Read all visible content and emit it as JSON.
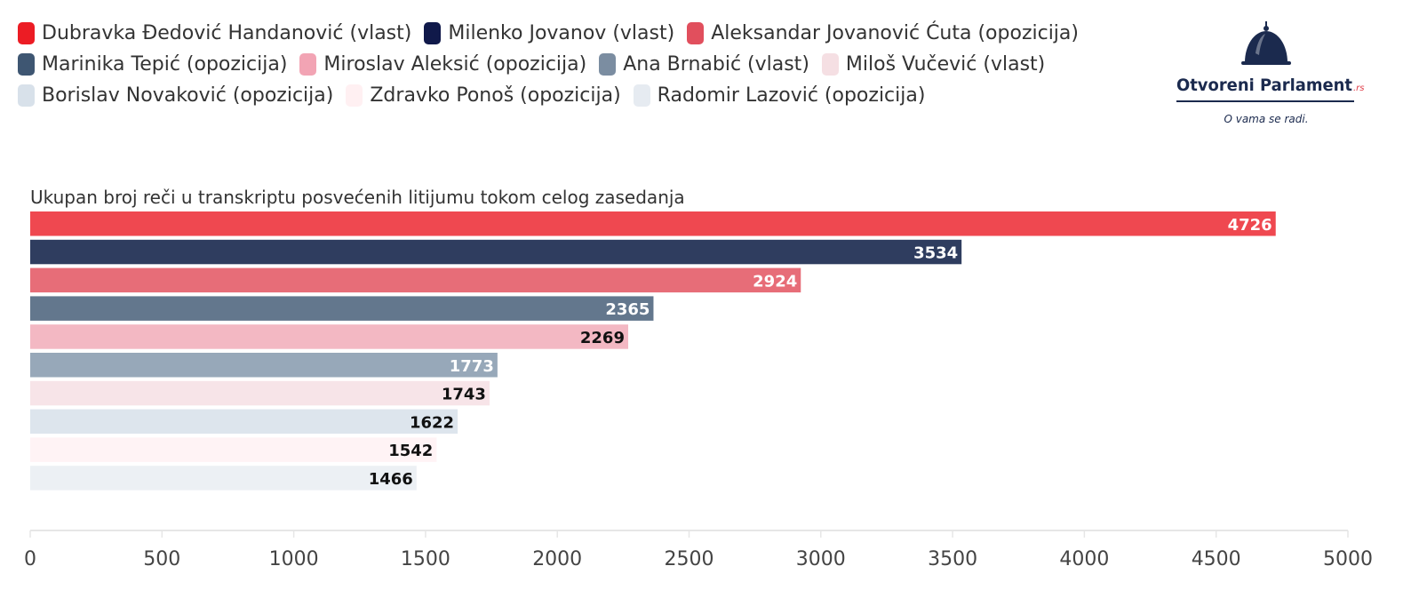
{
  "logo": {
    "name_part1": "Otvoreni",
    "name_part2": "Parlament",
    "domain_suffix": ".rs",
    "tagline": "O vama se radi.",
    "color": "#1b2a4e"
  },
  "chart_data": {
    "type": "bar",
    "orientation": "horizontal",
    "title": "Ukupan broj reči u transkriptu posvećenih litijumu tokom celog zasedanja",
    "xlabel": "",
    "ylabel": "",
    "xlim": [
      0,
      5000
    ],
    "xticks": [
      0,
      500,
      1000,
      1500,
      2000,
      2500,
      3000,
      3500,
      4000,
      4500,
      5000
    ],
    "legend_position": "top",
    "grid": false,
    "data_labels": true,
    "series": [
      {
        "name": "Dubravka Đedović Handanović (vlast)",
        "value": 4726,
        "color": "#ef4850",
        "legend_color": "#ec1c24",
        "label_style": "light"
      },
      {
        "name": "Milenko Jovanov (vlast)",
        "value": 3534,
        "color": "#2f3d5f",
        "legend_color": "#10194a",
        "label_style": "light"
      },
      {
        "name": "Aleksandar Jovanović Ćuta (opozicija)",
        "value": 2924,
        "color": "#e76d78",
        "legend_color": "#e14f5d",
        "label_style": "light"
      },
      {
        "name": "Marinika Tepić (opozicija)",
        "value": 2365,
        "color": "#63778d",
        "legend_color": "#3e5672",
        "label_style": "light"
      },
      {
        "name": "Miroslav Aleksić (opozicija)",
        "value": 2269,
        "color": "#f3b8c3",
        "legend_color": "#f2a4b4",
        "label_style": "dark"
      },
      {
        "name": "Ana Brnabić (vlast)",
        "value": 1773,
        "color": "#97a8b9",
        "legend_color": "#7b8da1",
        "label_style": "light"
      },
      {
        "name": "Miloš Vučević (vlast)",
        "value": 1743,
        "color": "#f7e4e8",
        "legend_color": "#f5dfe3",
        "label_style": "dark"
      },
      {
        "name": "Borislav Novaković (opozicija)",
        "value": 1622,
        "color": "#dde5ed",
        "legend_color": "#d8e1ea",
        "label_style": "dark"
      },
      {
        "name": "Zdravko Ponoš (opozicija)",
        "value": 1542,
        "color": "#fff3f5",
        "legend_color": "#fff0f2",
        "label_style": "dark"
      },
      {
        "name": "Radomir Lazović (opozicija)",
        "value": 1466,
        "color": "#ecf0f4",
        "legend_color": "#e6ebf1",
        "label_style": "dark"
      }
    ]
  }
}
